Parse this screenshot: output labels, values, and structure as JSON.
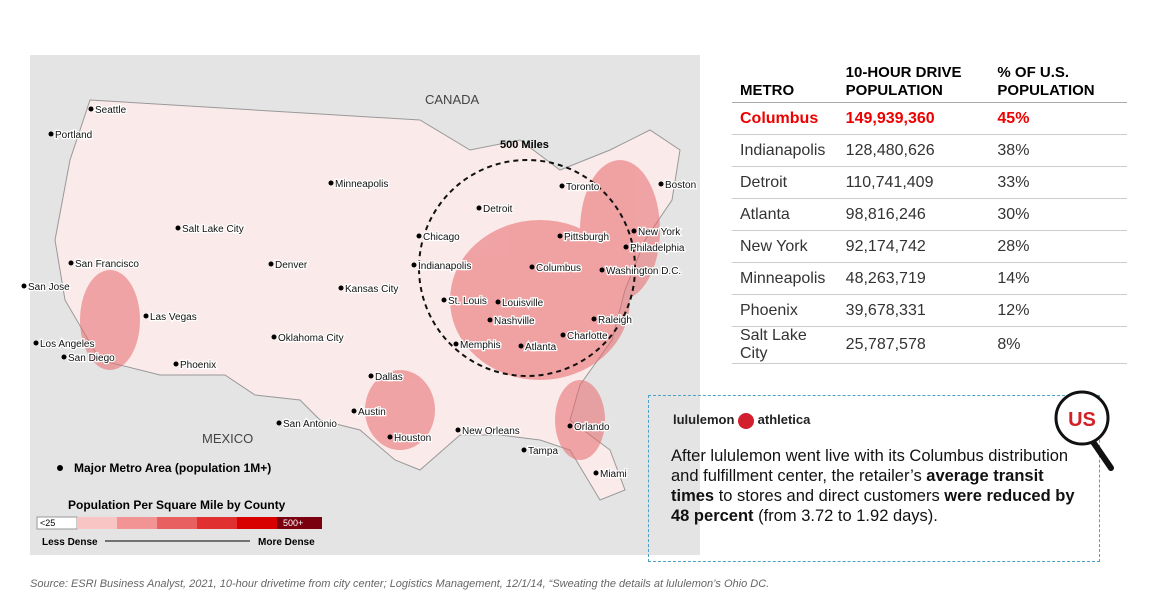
{
  "map": {
    "regions": [
      "CANADA",
      "MEXICO"
    ],
    "circle_label": "500 Miles",
    "cities": [
      "Seattle",
      "Portland",
      "Minneapolis",
      "Toronto",
      "Boston",
      "Detroit",
      "Chicago",
      "Salt Lake City",
      "New York",
      "Pittsburgh",
      "Philadelphia",
      "San Francisco",
      "Denver",
      "Indianapolis",
      "Columbus",
      "Washington D.C.",
      "San Jose",
      "Kansas City",
      "Las Vegas",
      "St. Louis",
      "Louisville",
      "Nashville",
      "Raleigh",
      "Oklahoma City",
      "Charlotte",
      "Los Angeles",
      "Memphis",
      "Atlanta",
      "San Diego",
      "Phoenix",
      "Dallas",
      "Austin",
      "San Antonio",
      "New Orleans",
      "Houston",
      "Orlando",
      "Tampa",
      "Miami"
    ],
    "legend": {
      "metro": "Major Metro Area (population 1M+)",
      "scale_title": "Population Per Square Mile by County",
      "low": "<25",
      "high": "500+",
      "less": "Less Dense",
      "more": "More Dense"
    }
  },
  "table": {
    "headers": [
      "METRO",
      "10-HOUR DRIVE POPULATION",
      "% OF U.S. POPULATION"
    ],
    "rows": [
      [
        "Columbus",
        "149,939,360",
        "45%"
      ],
      [
        "Indianapolis",
        "128,480,626",
        "38%"
      ],
      [
        "Detroit",
        "110,741,409",
        "33%"
      ],
      [
        "Atlanta",
        "98,816,246",
        "30%"
      ],
      [
        "New York",
        "92,174,742",
        "28%"
      ],
      [
        "Minneapolis",
        "48,263,719",
        "14%"
      ],
      [
        "Phoenix",
        "39,678,331",
        "12%"
      ],
      [
        "Salt Lake City",
        "25,787,578",
        "8%"
      ]
    ]
  },
  "callout": {
    "brand": "lululemon",
    "brand2": "athletica",
    "badge": "US",
    "body": [
      "After lululemon went live with its Columbus distribution and fulfillment center, the retailer’s ",
      "average transit times",
      " to stores and direct customers ",
      "were reduced by 48 percent",
      " (from 3.72 to 1.92 days)."
    ]
  },
  "source": "Source: ESRI Business Analyst, 2021, 10-hour drivetime from city center; Logistics Management, 12/1/14, “Sweating the details at lululemon’s Ohio DC."
}
